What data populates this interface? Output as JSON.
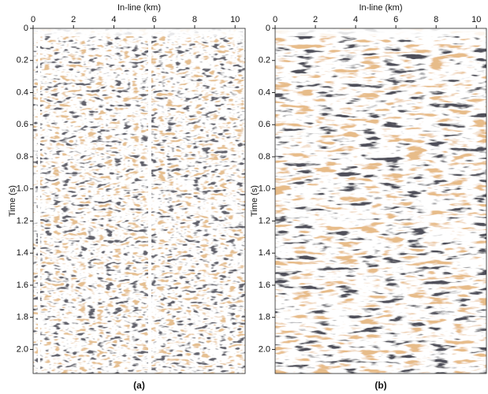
{
  "chart_data": [
    {
      "type": "seismic",
      "xlabel": "In-line (km)",
      "ylabel": "Time (s)",
      "caption": "(a)",
      "xlim": [
        0,
        10.5
      ],
      "ylim": [
        0,
        2.15
      ],
      "y_inverted": true,
      "xticks": [
        0,
        2,
        4,
        6,
        8,
        10
      ],
      "yticks": [
        0,
        0.2,
        0.4,
        0.6,
        0.8,
        {
          "value": 1.0,
          "label": "1.0"
        },
        1.2,
        1.4,
        1.6,
        1.8,
        {
          "value": 2.0,
          "label": "2.0"
        }
      ]
    },
    {
      "type": "seismic",
      "xlabel": "In-line (km)",
      "ylabel": "Time (s)",
      "caption": "(b)",
      "xlim": [
        0,
        10.5
      ],
      "ylim": [
        0,
        2.15
      ],
      "y_inverted": true,
      "xticks": [
        0,
        2,
        4,
        6,
        8,
        10
      ],
      "yticks": [
        0,
        0.2,
        0.4,
        0.6,
        0.8,
        {
          "value": 1.0,
          "label": "1.0"
        },
        1.2,
        1.4,
        1.6,
        1.8,
        {
          "value": 2.0,
          "label": "2.0"
        }
      ]
    }
  ]
}
